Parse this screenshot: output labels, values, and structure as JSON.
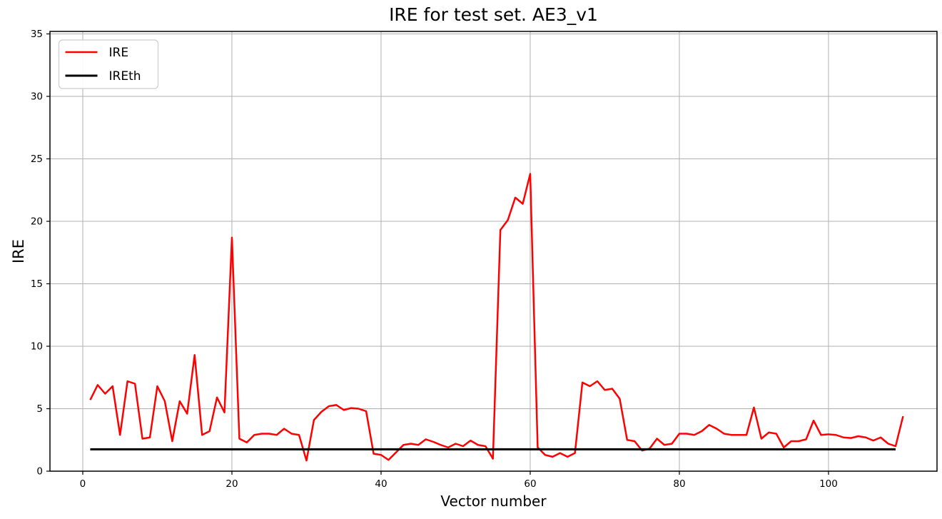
{
  "figure": {
    "title": "IRE for test set. AE3_v1"
  },
  "chart_data": {
    "type": "line",
    "title": "IRE for test set. AE3_v1",
    "xlabel": "Vector number",
    "ylabel": "IRE",
    "xlim": [
      -4.4,
      114.55
    ],
    "ylim": [
      0,
      35.2
    ],
    "x_ticks": [
      0,
      20,
      40,
      60,
      80,
      100
    ],
    "y_ticks": [
      0,
      5,
      10,
      15,
      20,
      25,
      30,
      35
    ],
    "grid": true,
    "grid_color": "#b0b0b0",
    "legend": {
      "position": "upper left",
      "entries": [
        "IRE",
        "IREth"
      ]
    },
    "x": [
      1,
      2,
      3,
      4,
      5,
      6,
      7,
      8,
      9,
      10,
      11,
      12,
      13,
      14,
      15,
      16,
      17,
      18,
      19,
      20,
      21,
      22,
      23,
      24,
      25,
      26,
      27,
      28,
      29,
      30,
      31,
      32,
      33,
      34,
      35,
      36,
      37,
      38,
      39,
      40,
      41,
      42,
      43,
      44,
      45,
      46,
      47,
      48,
      49,
      50,
      51,
      52,
      53,
      54,
      55,
      56,
      57,
      58,
      59,
      60,
      61,
      62,
      63,
      64,
      65,
      66,
      67,
      68,
      69,
      70,
      71,
      72,
      73,
      74,
      75,
      76,
      77,
      78,
      79,
      80,
      81,
      82,
      83,
      84,
      85,
      86,
      87,
      88,
      89,
      90,
      91,
      92,
      93,
      94,
      95,
      96,
      97,
      98,
      99,
      100,
      101,
      102,
      103,
      104,
      105,
      106,
      107,
      108,
      109,
      110
    ],
    "series": [
      {
        "name": "IRE",
        "color": "#ff0000",
        "line_width": 2.5,
        "values": [
          5.7,
          6.9,
          6.2,
          6.8,
          2.9,
          7.2,
          7.0,
          2.6,
          2.7,
          6.8,
          5.6,
          2.4,
          5.6,
          4.6,
          9.3,
          2.9,
          3.2,
          5.9,
          4.7,
          18.7,
          2.6,
          2.3,
          2.9,
          3.0,
          3.0,
          2.9,
          3.4,
          3.0,
          2.9,
          0.85,
          4.1,
          4.75,
          5.2,
          5.3,
          4.9,
          5.05,
          5.0,
          4.8,
          1.4,
          1.3,
          0.9,
          1.5,
          2.1,
          2.2,
          2.1,
          2.55,
          2.35,
          2.1,
          1.9,
          2.2,
          2.0,
          2.45,
          2.1,
          2.0,
          1.0,
          19.3,
          20.1,
          21.9,
          21.4,
          23.8,
          1.9,
          1.3,
          1.15,
          1.45,
          1.15,
          1.45,
          7.1,
          6.8,
          7.2,
          6.5,
          6.6,
          5.8,
          2.5,
          2.4,
          1.65,
          1.8,
          2.6,
          2.1,
          2.2,
          3.0,
          3.0,
          2.9,
          3.2,
          3.7,
          3.4,
          3.0,
          2.9,
          2.9,
          2.9,
          5.1,
          2.6,
          3.1,
          3.0,
          1.9,
          2.4,
          2.4,
          2.55,
          4.05,
          2.9,
          2.95,
          2.9,
          2.7,
          2.65,
          2.8,
          2.7,
          2.45,
          2.7,
          2.2,
          2.0,
          4.4
        ]
      },
      {
        "name": "IREth",
        "color": "#000000",
        "line_width": 3,
        "constant": 1.75,
        "x_range": [
          1,
          109
        ]
      }
    ]
  }
}
